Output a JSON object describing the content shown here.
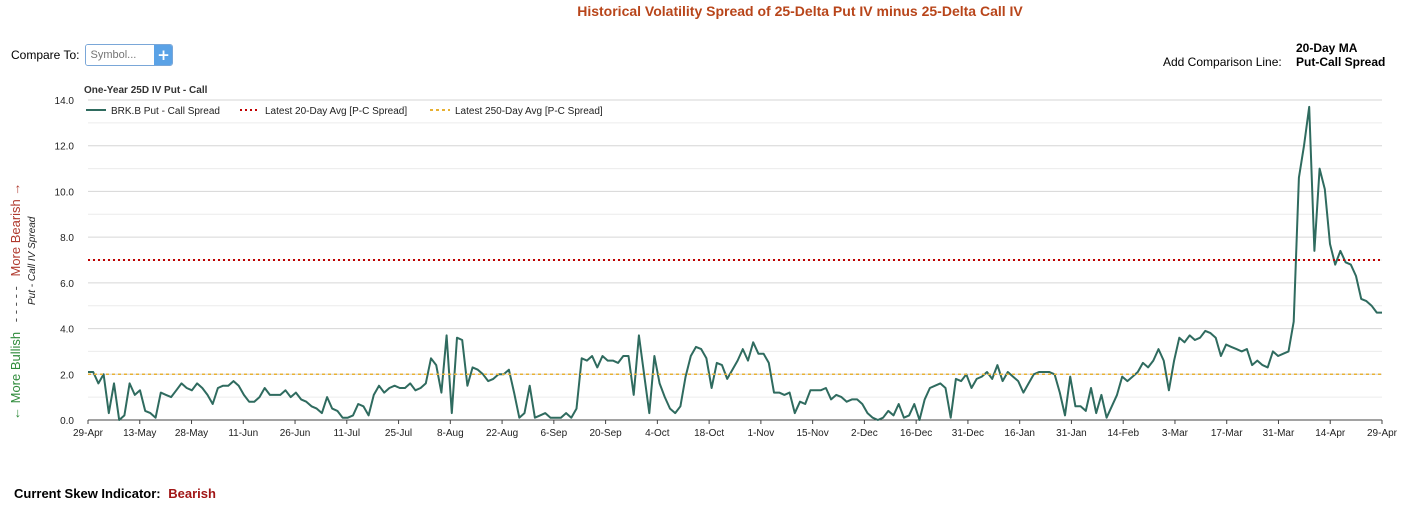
{
  "title": "Historical Volatility Spread of 25-Delta Put IV minus 25-Delta Call IV",
  "compare": {
    "label": "Compare To:",
    "placeholder": "Symbol...",
    "add_button": "+"
  },
  "comparison_line": {
    "label": "Add Comparison Line:",
    "ma_line1": "20-Day MA",
    "ma_line2": "Put-Call Spread"
  },
  "chart_title": "One-Year 25D IV Put - Call",
  "y_axis": {
    "bearish_label": "More Bearish →",
    "dashes": "- - - - -",
    "bullish_label": "← More Bullish",
    "label": "Put - Call IV Spread"
  },
  "indicator": {
    "label": "Current Skew Indicator:",
    "value": "Bearish"
  },
  "chart_data": {
    "type": "line",
    "title": "One-Year 25D IV Put - Call",
    "ylim": [
      0,
      14
    ],
    "y_ticks": [
      {
        "value": 0,
        "label": "0.0"
      },
      {
        "value": 2,
        "label": "2.0"
      },
      {
        "value": 4,
        "label": "4.0"
      },
      {
        "value": 6,
        "label": "6.0"
      },
      {
        "value": 8,
        "label": "8.0"
      },
      {
        "value": 10,
        "label": "10.0"
      },
      {
        "value": 12,
        "label": "12.0"
      },
      {
        "value": 14,
        "label": "14.0"
      }
    ],
    "x_range": [
      "29-Apr",
      "29-Apr"
    ],
    "x_ticks": [
      "29-Apr",
      "13-May",
      "28-May",
      "11-Jun",
      "26-Jun",
      "11-Jul",
      "25-Jul",
      "8-Aug",
      "22-Aug",
      "6-Sep",
      "20-Sep",
      "4-Oct",
      "18-Oct",
      "1-Nov",
      "15-Nov",
      "2-Dec",
      "16-Dec",
      "31-Dec",
      "16-Jan",
      "31-Jan",
      "14-Feb",
      "3-Mar",
      "17-Mar",
      "31-Mar",
      "14-Apr",
      "29-Apr"
    ],
    "grid": true,
    "legend_position": "top-left",
    "series": [
      {
        "name": "BRK.B Put - Call Spread",
        "color": "#2f6b5f",
        "style": "solid",
        "values": [
          2.1,
          2.1,
          1.6,
          2.0,
          0.3,
          1.6,
          0.0,
          0.2,
          1.6,
          1.1,
          1.3,
          0.4,
          0.3,
          0.1,
          1.2,
          1.1,
          1.0,
          1.3,
          1.6,
          1.4,
          1.3,
          1.6,
          1.4,
          1.1,
          0.7,
          1.4,
          1.5,
          1.5,
          1.7,
          1.5,
          1.1,
          0.8,
          0.8,
          1.0,
          1.4,
          1.1,
          1.1,
          1.1,
          1.3,
          1.0,
          1.2,
          0.9,
          0.8,
          0.6,
          0.5,
          0.3,
          1.0,
          0.5,
          0.4,
          0.1,
          0.1,
          0.2,
          0.7,
          0.6,
          0.2,
          1.1,
          1.5,
          1.2,
          1.4,
          1.5,
          1.4,
          1.4,
          1.6,
          1.3,
          1.4,
          1.6,
          2.7,
          2.4,
          1.2,
          3.7,
          0.3,
          3.6,
          3.5,
          1.5,
          2.3,
          2.2,
          2.0,
          1.7,
          1.8,
          2.0,
          2.0,
          2.2,
          1.2,
          0.1,
          0.3,
          1.5,
          0.1,
          0.2,
          0.3,
          0.1,
          0.1,
          0.1,
          0.3,
          0.1,
          0.5,
          2.7,
          2.6,
          2.8,
          2.3,
          2.8,
          2.6,
          2.6,
          2.5,
          2.8,
          2.8,
          1.1,
          3.7,
          2.0,
          0.3,
          2.8,
          1.6,
          1.0,
          0.5,
          0.3,
          0.6,
          1.9,
          2.8,
          3.2,
          3.1,
          2.7,
          1.4,
          2.5,
          2.4,
          1.8,
          2.2,
          2.6,
          3.1,
          2.6,
          3.4,
          2.9,
          2.9,
          2.5,
          1.2,
          1.2,
          1.1,
          1.2,
          0.3,
          0.8,
          0.7,
          1.3,
          1.3,
          1.3,
          1.4,
          0.9,
          1.1,
          1.0,
          0.8,
          0.9,
          0.9,
          0.7,
          0.3,
          0.1,
          0.0,
          0.1,
          0.4,
          0.2,
          0.7,
          0.1,
          0.2,
          0.7,
          0.0,
          0.9,
          1.4,
          1.5,
          1.6,
          1.4,
          0.1,
          1.8,
          1.7,
          2.0,
          1.4,
          1.8,
          1.9,
          2.1,
          1.8,
          2.4,
          1.7,
          2.1,
          1.9,
          1.7,
          1.2,
          1.6,
          2.0,
          2.1,
          2.1,
          2.1,
          2.0,
          1.2,
          0.2,
          1.9,
          0.6,
          0.6,
          0.4,
          1.4,
          0.3,
          1.1,
          0.1,
          0.6,
          1.1,
          1.9,
          1.7,
          1.9,
          2.1,
          2.5,
          2.3,
          2.6,
          3.1,
          2.6,
          1.3,
          2.6,
          3.6,
          3.4,
          3.7,
          3.5,
          3.6,
          3.9,
          3.8,
          3.6,
          2.8,
          3.3,
          3.2,
          3.1,
          3.0,
          3.1,
          2.4,
          2.6,
          2.4,
          2.3,
          3.0,
          2.8,
          2.9,
          3.0,
          4.3,
          10.6,
          12.0,
          13.7,
          7.4,
          11.0,
          10.1,
          7.7,
          6.8,
          7.4,
          6.9,
          6.8,
          6.3,
          5.3,
          5.2,
          5.0,
          4.7,
          4.7
        ]
      },
      {
        "name": "Latest 20-Day Avg [P-C Spread]",
        "color": "#c00000",
        "style": "dotted",
        "constant": 7.0
      },
      {
        "name": "Latest 250-Day Avg [P-C Spread]",
        "color": "#e8b133",
        "style": "dashed",
        "constant": 2.0
      }
    ]
  }
}
